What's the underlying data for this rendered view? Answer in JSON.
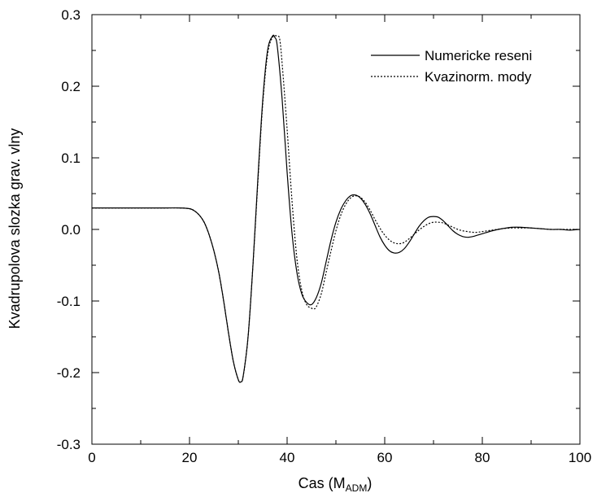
{
  "chart_data": {
    "type": "line",
    "title": "",
    "xlabel_main": "Cas (M",
    "xlabel_sub": "ADM",
    "xlabel_end": ")",
    "ylabel": "Kvadrupolova slozka grav. vlny",
    "xlim": [
      0,
      100
    ],
    "ylim": [
      -0.3,
      0.3
    ],
    "x_ticks": [
      0,
      20,
      40,
      60,
      80,
      100
    ],
    "x_tick_labels": [
      "0",
      "20",
      "40",
      "60",
      "80",
      "100"
    ],
    "y_ticks": [
      -0.3,
      -0.2,
      -0.1,
      0.0,
      0.1,
      0.2,
      0.3
    ],
    "y_tick_labels": [
      "-0.3",
      "-0.2",
      "-0.1",
      "0.0",
      "0.1",
      "0.2",
      "0.3"
    ],
    "grid": false,
    "legend_position": "top-right",
    "series": [
      {
        "name": "Numericke reseni",
        "style": "solid",
        "color": "#000000",
        "x": [
          0,
          5,
          10,
          15,
          18,
          20,
          21,
          22,
          23,
          24,
          25,
          26,
          27,
          28,
          29,
          30,
          30.5,
          31,
          32,
          33,
          34,
          35,
          36,
          37,
          37.5,
          38,
          39,
          40,
          41,
          42,
          43,
          44,
          45,
          46,
          47,
          48,
          49,
          50,
          51,
          52,
          53,
          54,
          55,
          56,
          57,
          58,
          59,
          60,
          61,
          62,
          63,
          64,
          65,
          66,
          67,
          68,
          69,
          70,
          71,
          72,
          73,
          74,
          75,
          76,
          77,
          78,
          79,
          80,
          82,
          84,
          86,
          88,
          90,
          92,
          94,
          96,
          98,
          100
        ],
        "y": [
          0.03,
          0.03,
          0.03,
          0.03,
          0.03,
          0.029,
          0.026,
          0.02,
          0.01,
          -0.007,
          -0.03,
          -0.06,
          -0.1,
          -0.145,
          -0.185,
          -0.21,
          -0.213,
          -0.205,
          -0.15,
          -0.05,
          0.07,
          0.18,
          0.25,
          0.27,
          0.268,
          0.255,
          0.18,
          0.08,
          -0.005,
          -0.06,
          -0.09,
          -0.102,
          -0.105,
          -0.095,
          -0.075,
          -0.045,
          -0.015,
          0.01,
          0.028,
          0.04,
          0.047,
          0.048,
          0.044,
          0.035,
          0.022,
          0.006,
          -0.01,
          -0.022,
          -0.03,
          -0.033,
          -0.032,
          -0.027,
          -0.018,
          -0.007,
          0.004,
          0.012,
          0.017,
          0.018,
          0.017,
          0.012,
          0.005,
          -0.002,
          -0.007,
          -0.01,
          -0.011,
          -0.01,
          -0.008,
          -0.006,
          -0.002,
          0.001,
          0.003,
          0.003,
          0.002,
          0.001,
          0.0,
          0.0,
          -0.001,
          0.0
        ]
      },
      {
        "name": "Kvazinorm. mody",
        "style": "dotted",
        "color": "#000000",
        "x": [
          0,
          5,
          10,
          15,
          18,
          20,
          21,
          22,
          23,
          24,
          25,
          26,
          27,
          28,
          29,
          30,
          30.5,
          31,
          32,
          33,
          34,
          35,
          36,
          37,
          38,
          38.5,
          39,
          40,
          41,
          42,
          43,
          44,
          45,
          45.5,
          46,
          47,
          48,
          49,
          50,
          51,
          52,
          53,
          54,
          55,
          56,
          57,
          58,
          59,
          60,
          61,
          62,
          63,
          64,
          65,
          66,
          67,
          68,
          69,
          70,
          71,
          72,
          73,
          74,
          75,
          76,
          77,
          78,
          79,
          80,
          82,
          84,
          86,
          88,
          90,
          92,
          94,
          96,
          98,
          100
        ],
        "y": [
          0.03,
          0.03,
          0.03,
          0.03,
          0.03,
          0.029,
          0.026,
          0.02,
          0.01,
          -0.007,
          -0.03,
          -0.06,
          -0.1,
          -0.145,
          -0.185,
          -0.21,
          -0.213,
          -0.205,
          -0.15,
          -0.05,
          0.065,
          0.175,
          0.245,
          0.268,
          0.27,
          0.265,
          0.23,
          0.14,
          0.04,
          -0.04,
          -0.085,
          -0.105,
          -0.11,
          -0.111,
          -0.108,
          -0.09,
          -0.06,
          -0.03,
          -0.002,
          0.02,
          0.035,
          0.044,
          0.047,
          0.045,
          0.038,
          0.027,
          0.014,
          0.002,
          -0.008,
          -0.015,
          -0.019,
          -0.02,
          -0.018,
          -0.013,
          -0.007,
          -0.001,
          0.004,
          0.008,
          0.01,
          0.01,
          0.009,
          0.006,
          0.003,
          0.0,
          -0.002,
          -0.003,
          -0.004,
          -0.004,
          -0.003,
          -0.001,
          0.001,
          0.002,
          0.002,
          0.002,
          0.001,
          0.0,
          0.0,
          0.0,
          0.0
        ]
      }
    ]
  }
}
